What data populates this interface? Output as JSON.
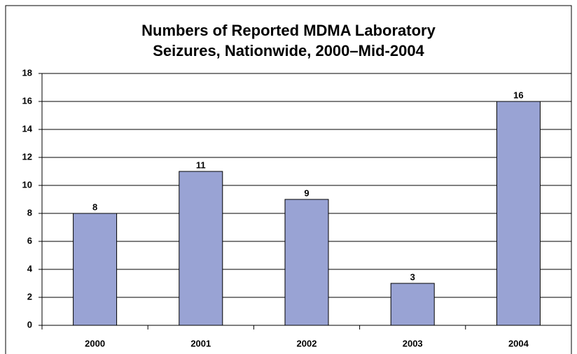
{
  "chart_data": {
    "type": "bar",
    "title": [
      "Numbers of Reported MDMA Laboratory",
      "Seizures, Nationwide, 2000–Mid-2004"
    ],
    "categories": [
      "2000",
      "2001",
      "2002",
      "2003",
      "2004"
    ],
    "values": [
      8,
      11,
      9,
      3,
      16
    ],
    "color": "#99a3d4",
    "ylim": [
      0,
      18
    ],
    "yticks": [
      0,
      2,
      4,
      6,
      8,
      10,
      12,
      14,
      16,
      18
    ],
    "grid": true
  }
}
